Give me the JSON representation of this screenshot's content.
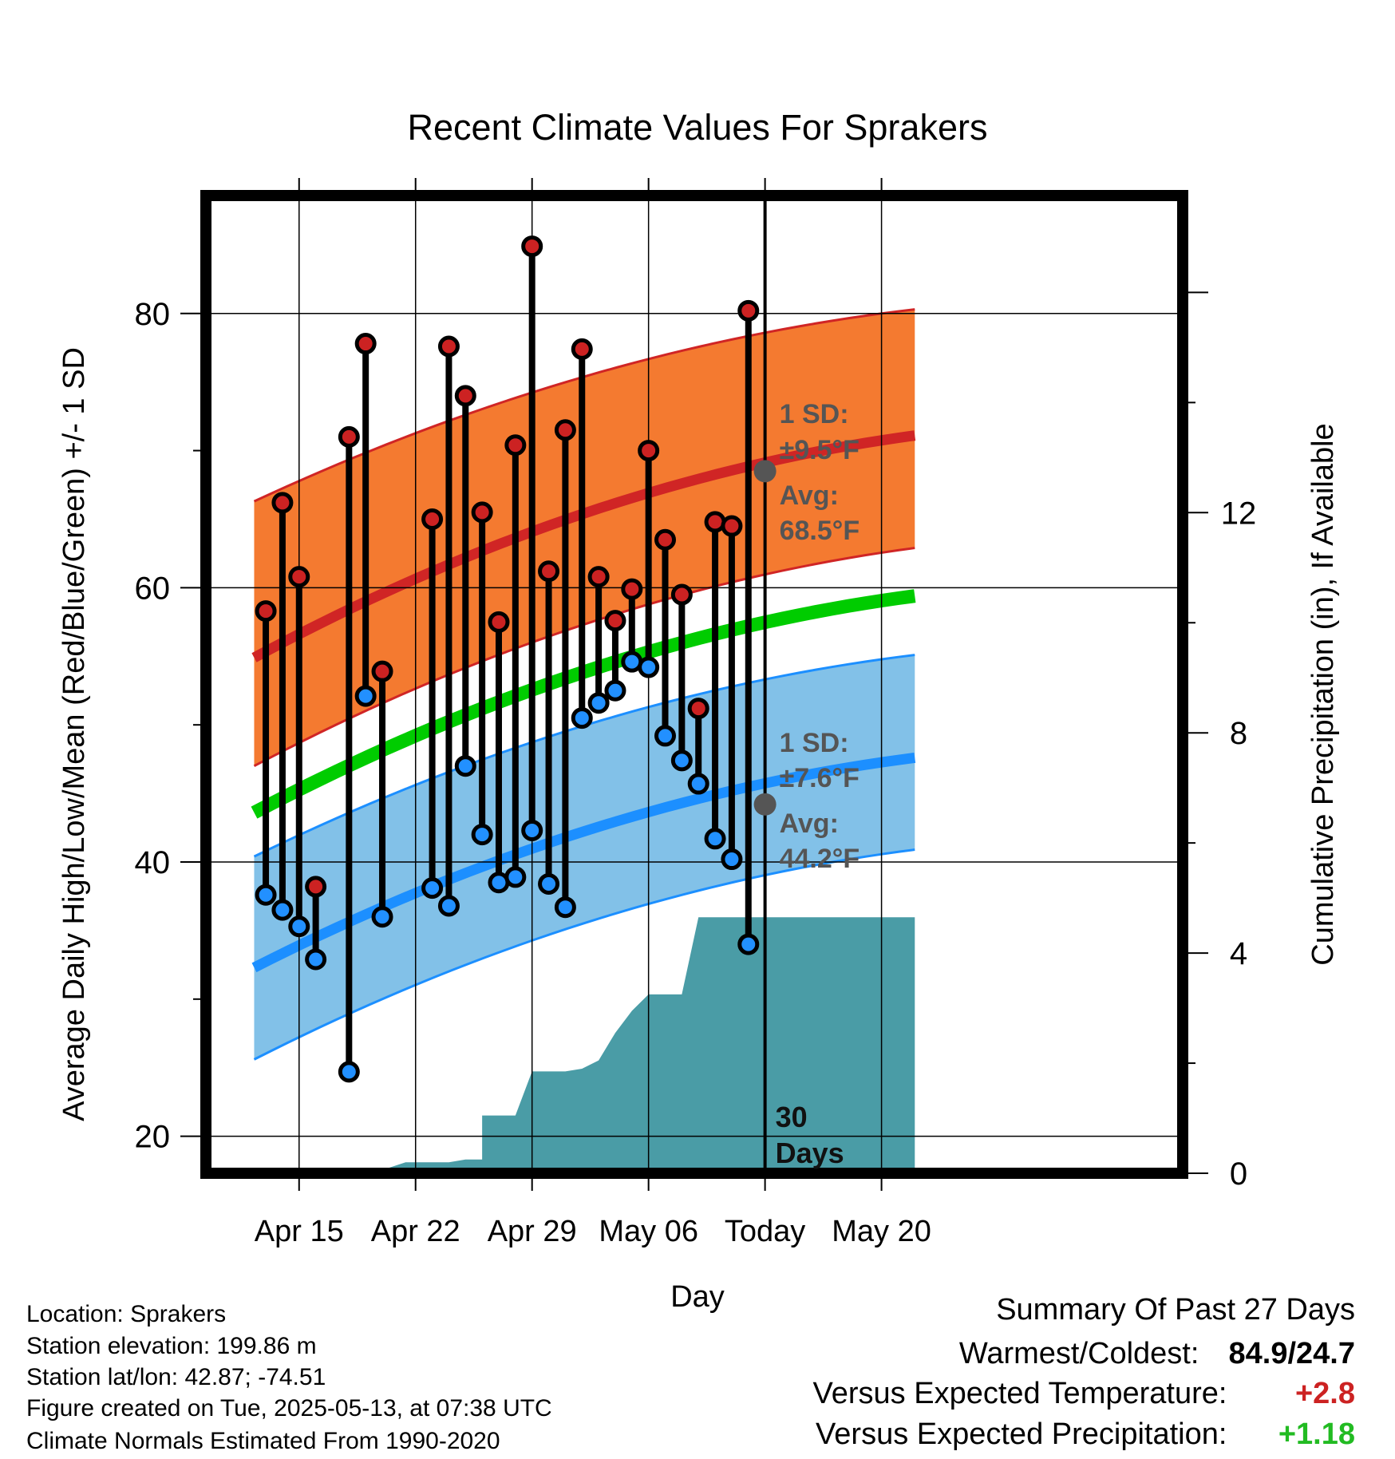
{
  "chart_data": {
    "type": "line",
    "title": "Recent Climate Values For Sprakers",
    "xlabel": "Day",
    "ylabel": "Average Daily High/Low/Mean (Red/Blue/Green) +/- 1 SD",
    "y2label": "Cumulative Precipitation (in), If Available",
    "ylim": [
      17.3,
      88.6
    ],
    "y2lim": [
      0,
      17.76
    ],
    "xlim": [
      -5.6,
      53.1
    ],
    "x_tick_labels": [
      {
        "day": 0,
        "label": "Apr 15"
      },
      {
        "day": 7,
        "label": "Apr 22"
      },
      {
        "day": 14,
        "label": "Apr 29"
      },
      {
        "day": 21,
        "label": "May 06"
      },
      {
        "day": 28,
        "label": "Today"
      },
      {
        "day": 35,
        "label": "May 20"
      }
    ],
    "y_ticks": [
      20,
      40,
      60,
      80
    ],
    "y2_ticks": [
      0,
      4,
      8,
      12
    ],
    "grid": true,
    "normals": {
      "day_range": [
        -2.7,
        37.0
      ],
      "high_mean": [
        54.9,
        71.1
      ],
      "high_sd_upper": [
        66.3,
        80.3
      ],
      "high_sd_lower": [
        47.0,
        62.9
      ],
      "low_mean": [
        32.3,
        47.6
      ],
      "low_sd_upper": [
        40.4,
        55.1
      ],
      "low_sd_lower": [
        25.6,
        40.9
      ],
      "mean_mean": [
        43.6,
        59.4
      ]
    },
    "today_marker": {
      "day": 28,
      "high_sd_text": "1 SD:",
      "high_sd_value": "±9.5°F",
      "high_avg_text": "Avg:",
      "high_avg_value": "68.5°F",
      "low_sd_text": "1 SD:",
      "low_sd_value": "±7.6°F",
      "low_avg_text": "Avg:",
      "low_avg_value": "44.2°F",
      "high_avg": 68.5,
      "low_avg": 44.2,
      "window_label_1": "30",
      "window_label_2": "Days"
    },
    "series": [
      {
        "name": "High",
        "color": "#cc2222",
        "days": [
          -2,
          -1,
          0,
          1,
          3,
          4,
          5,
          8,
          9,
          10,
          11,
          12,
          13,
          14,
          15,
          16,
          17,
          18,
          19,
          20,
          21,
          22,
          23,
          24,
          25,
          26,
          27
        ],
        "values": [
          58.3,
          66.2,
          60.8,
          38.2,
          71.0,
          77.8,
          53.9,
          65.0,
          77.6,
          74.0,
          65.5,
          57.5,
          70.4,
          84.9,
          61.2,
          71.5,
          77.4,
          60.8,
          57.6,
          59.9,
          70.0,
          63.5,
          59.5,
          51.2,
          64.8,
          64.5,
          80.2
        ]
      },
      {
        "name": "Low",
        "color": "#2290ff",
        "days": [
          -2,
          -1,
          0,
          1,
          3,
          4,
          5,
          8,
          9,
          10,
          11,
          12,
          13,
          14,
          15,
          16,
          17,
          18,
          19,
          20,
          21,
          22,
          23,
          24,
          25,
          26,
          27
        ],
        "values": [
          37.6,
          36.5,
          35.3,
          32.9,
          24.7,
          52.1,
          36.0,
          38.1,
          36.8,
          47.0,
          42.0,
          38.5,
          38.9,
          42.3,
          38.4,
          36.7,
          50.5,
          51.6,
          52.5,
          54.6,
          54.2,
          49.2,
          47.4,
          45.7,
          41.7,
          40.2,
          34.0
        ]
      }
    ],
    "precipitation": {
      "name": "Cumulative Precipitation",
      "color": "#4a9ca6",
      "days": [
        -2.7,
        3.6,
        4.2,
        5.4,
        6.4,
        7,
        8,
        9,
        10,
        11,
        11,
        13,
        13,
        14,
        15,
        16,
        17,
        18,
        19,
        20,
        21,
        22,
        23,
        24,
        25,
        26,
        27,
        28,
        37.0
      ],
      "values": [
        0,
        0,
        0.08,
        0.1,
        0.2,
        0.2,
        0.2,
        0.2,
        0.25,
        0.25,
        1.05,
        1.05,
        1.05,
        1.85,
        1.85,
        1.85,
        1.9,
        2.05,
        2.55,
        2.95,
        3.25,
        3.25,
        3.25,
        4.65,
        4.65,
        4.65,
        4.65,
        4.65,
        4.65
      ]
    }
  },
  "info": {
    "location": "Location: Sprakers",
    "elevation": "Station elevation: 199.86 m",
    "latlon": "Station lat/lon: 42.87; -74.51",
    "created": "Figure created on Tue, 2025-05-13, at 07:38 UTC",
    "normals": "Climate Normals Estimated From 1990-2020"
  },
  "summary": {
    "title": "Summary Of Past 27 Days",
    "warmest_coldest_label": "Warmest/Coldest:",
    "warmest_coldest_value": "84.9/24.7",
    "temp_label": "Versus Expected Temperature:",
    "temp_value": "+2.8",
    "temp_color": "#cc2222",
    "precip_label": "Versus Expected Precipitation:",
    "precip_value": "+1.18",
    "precip_color": "#22bb22"
  },
  "colors": {
    "high_band": "#f47a30",
    "high_line": "#d02525",
    "low_band": "#82c1e8",
    "low_line": "#1c8fff",
    "mean_line": "#00cc00",
    "annotation": "#555555"
  }
}
